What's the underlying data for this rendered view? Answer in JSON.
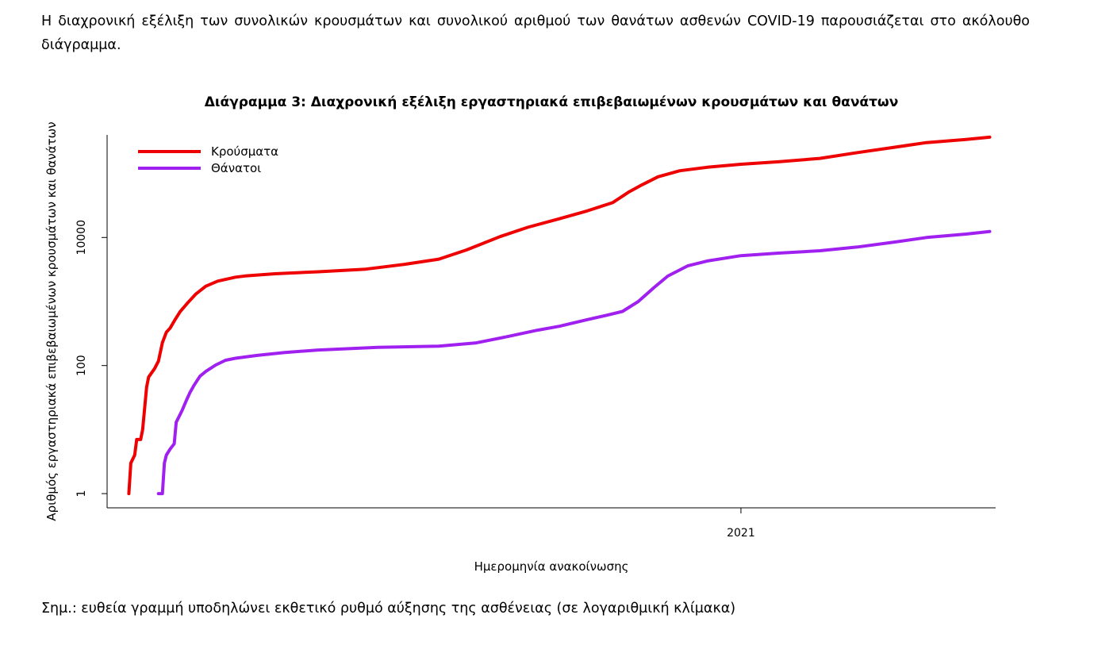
{
  "intro_text": "Η διαχρονική εξέλιξη των συνολικών κρουσμάτων και συνολικού αριθμού των θανάτων ασθενών COVID-19 παρουσιάζεται στο ακόλουθο διάγραμμα.",
  "note_text": "Σημ.: ευθεία γραμμή υποδηλώνει εκθετικό ρυθμό αύξησης της ασθένειας (σε λογαριθμική κλίμακα)",
  "colors": {
    "cases": "#ee0000",
    "deaths": "#a020f0"
  },
  "chart_data": {
    "type": "line",
    "title": "Διάγραμμα 3: Διαχρονική εξέλιξη εργαστηριακά επιβεβαιωμένων κρουσμάτων και θανάτων",
    "xlabel": "Ημερομηνία ανακοίνωσης",
    "ylabel": "Αριθμός εργαστηριακά επιβεβαιωμένων κρουσμάτων και θανάτων",
    "y_scale": "log",
    "y_ticks": [
      1,
      100,
      10000
    ],
    "y_tick_labels": [
      "1",
      "100",
      "10000"
    ],
    "x_ticks": [
      "2021-01-01"
    ],
    "x_tick_labels": [
      "2021"
    ],
    "xlim": [
      "2020-02-15",
      "2021-05-10"
    ],
    "ylim": [
      0.6,
      400000
    ],
    "legend_position": "top-left",
    "grid": false,
    "series": [
      {
        "name": "Κρούσματα",
        "color": "#ee0000",
        "points": [
          [
            "2020-02-26",
            1
          ],
          [
            "2020-02-27",
            3
          ],
          [
            "2020-02-29",
            4
          ],
          [
            "2020-03-01",
            7
          ],
          [
            "2020-03-03",
            7
          ],
          [
            "2020-03-04",
            10
          ],
          [
            "2020-03-06",
            46
          ],
          [
            "2020-03-07",
            66
          ],
          [
            "2020-03-08",
            73
          ],
          [
            "2020-03-10",
            89
          ],
          [
            "2020-03-12",
            117
          ],
          [
            "2020-03-14",
            228
          ],
          [
            "2020-03-16",
            331
          ],
          [
            "2020-03-18",
            387
          ],
          [
            "2020-03-20",
            495
          ],
          [
            "2020-03-23",
            695
          ],
          [
            "2020-03-27",
            966
          ],
          [
            "2020-03-31",
            1314
          ],
          [
            "2020-04-05",
            1735
          ],
          [
            "2020-04-11",
            2081
          ],
          [
            "2020-04-20",
            2401
          ],
          [
            "2020-04-25",
            2506
          ],
          [
            "2020-05-10",
            2710
          ],
          [
            "2020-06-01",
            2918
          ],
          [
            "2020-06-25",
            3203
          ],
          [
            "2020-07-15",
            3826
          ],
          [
            "2020-08-01",
            4587
          ],
          [
            "2020-08-15",
            6381
          ],
          [
            "2020-09-01",
            10317
          ],
          [
            "2020-09-15",
            14400
          ],
          [
            "2020-10-01",
            19613
          ],
          [
            "2020-10-15",
            25902
          ],
          [
            "2020-10-28",
            35000
          ],
          [
            "2020-11-05",
            50770
          ],
          [
            "2020-11-12",
            66637
          ],
          [
            "2020-11-20",
            88553
          ],
          [
            "2020-12-01",
            110000
          ],
          [
            "2020-12-15",
            125000
          ],
          [
            "2021-01-01",
            139000
          ],
          [
            "2021-01-20",
            152000
          ],
          [
            "2021-02-10",
            172000
          ],
          [
            "2021-03-01",
            212000
          ],
          [
            "2021-03-20",
            257000
          ],
          [
            "2021-04-05",
            303000
          ],
          [
            "2021-04-25",
            340000
          ],
          [
            "2021-05-07",
            368000
          ]
        ]
      },
      {
        "name": "Θάνατοι",
        "color": "#a020f0",
        "points": [
          [
            "2020-03-12",
            1
          ],
          [
            "2020-03-14",
            1
          ],
          [
            "2020-03-15",
            3
          ],
          [
            "2020-03-16",
            4
          ],
          [
            "2020-03-18",
            5
          ],
          [
            "2020-03-20",
            6
          ],
          [
            "2020-03-21",
            13
          ],
          [
            "2020-03-24",
            20
          ],
          [
            "2020-03-26",
            28
          ],
          [
            "2020-03-28",
            38
          ],
          [
            "2020-03-30",
            49
          ],
          [
            "2020-04-02",
            68
          ],
          [
            "2020-04-05",
            81
          ],
          [
            "2020-04-10",
            102
          ],
          [
            "2020-04-15",
            121
          ],
          [
            "2020-04-20",
            130
          ],
          [
            "2020-05-01",
            144
          ],
          [
            "2020-05-15",
            160
          ],
          [
            "2020-06-01",
            175
          ],
          [
            "2020-07-01",
            192
          ],
          [
            "2020-08-01",
            201
          ],
          [
            "2020-08-20",
            226
          ],
          [
            "2020-09-05",
            284
          ],
          [
            "2020-09-20",
            357
          ],
          [
            "2020-10-01",
            410
          ],
          [
            "2020-10-15",
            520
          ],
          [
            "2020-10-25",
            611
          ],
          [
            "2020-11-02",
            700
          ],
          [
            "2020-11-10",
            1000
          ],
          [
            "2020-11-18",
            1650
          ],
          [
            "2020-11-25",
            2500
          ],
          [
            "2020-12-05",
            3600
          ],
          [
            "2020-12-15",
            4300
          ],
          [
            "2021-01-01",
            5200
          ],
          [
            "2021-01-20",
            5700
          ],
          [
            "2021-02-10",
            6200
          ],
          [
            "2021-03-01",
            7100
          ],
          [
            "2021-03-20",
            8500
          ],
          [
            "2021-04-05",
            10000
          ],
          [
            "2021-04-25",
            11300
          ],
          [
            "2021-05-07",
            12400
          ]
        ]
      }
    ]
  }
}
